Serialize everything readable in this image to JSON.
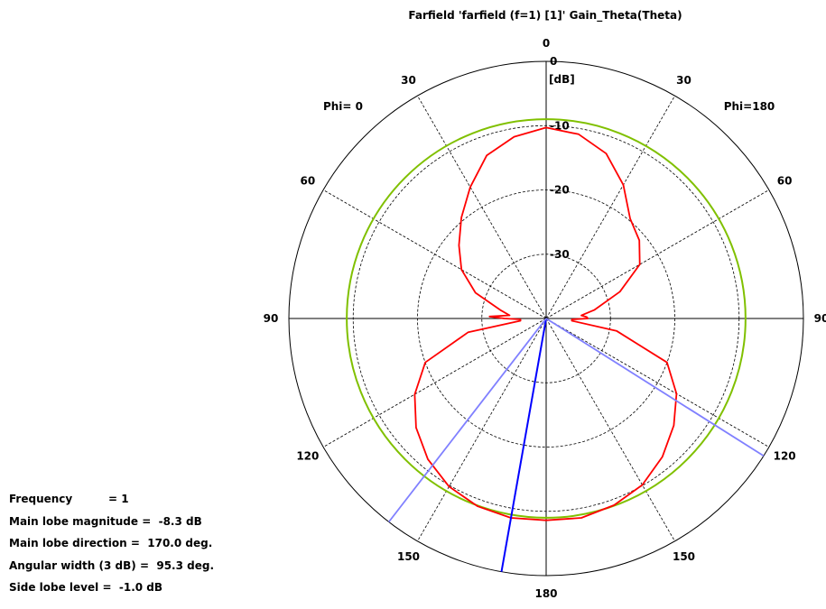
{
  "chart_data": {
    "type": "polar",
    "title": "Farfield 'farfield (f=1) [1]' Gain_Theta(Theta)",
    "unit_label": "[dB]",
    "phi_left_label": "Phi= 0",
    "phi_right_label": "Phi=180",
    "radial_ticks": [
      0,
      -10,
      -20,
      -30
    ],
    "radial_tick_labels": [
      "0",
      "-10",
      "-20",
      "-30"
    ],
    "radial_range_db": [
      -40,
      0
    ],
    "angle_tick_labels_right": [
      "0",
      "30",
      "60",
      "90",
      "120",
      "150",
      "180"
    ],
    "angle_tick_labels_left": [
      "30",
      "60",
      "90",
      "120",
      "150"
    ],
    "grid": true,
    "series": [
      {
        "color": "#ff0000",
        "theta_deg": [
          0,
          10,
          20,
          30,
          40,
          50,
          60,
          70,
          80,
          85,
          88,
          90,
          92,
          95,
          100,
          110,
          120,
          130,
          140,
          150,
          160,
          170,
          180
        ],
        "phi0_db": [
          -10.3,
          -11.3,
          -13.0,
          -16.4,
          -19.5,
          -22.3,
          -24.8,
          -28.3,
          -32.9,
          -34.3,
          -31.2,
          -33.5,
          -36.0,
          -36.0,
          -27.7,
          -20.0,
          -16.4,
          -13.6,
          -11.4,
          -9.8,
          -8.9,
          -8.5,
          -8.6
        ],
        "phi180_db": [
          -10.3,
          -10.9,
          -12.7,
          -16.0,
          -19.7,
          -21.1,
          -23.2,
          -27.8,
          -32.4,
          -34.5,
          -33.7,
          -33.5,
          -36.0,
          -36.0,
          -28.9,
          -20.0,
          -16.6,
          -14.1,
          -11.9,
          -10.1,
          -9.1,
          -8.5,
          -8.6
        ]
      },
      {
        "color": "#80c000",
        "constant_db": -9.0
      }
    ],
    "main_lobe_direction_deg": 170.0,
    "beamwidth_edges_deg": [
      122.3,
      217.7
    ],
    "markers": {
      "main_lobe_color": "#0000ff",
      "beamwidth_color": "#8080ff"
    }
  },
  "info": {
    "frequency_label": "Frequency",
    "frequency_value": "= 1",
    "main_lobe_magnitude_label": "Main lobe magnitude",
    "main_lobe_magnitude_value": "=  -8.3 dB",
    "main_lobe_direction_label": "Main lobe direction",
    "main_lobe_direction_value": "=  170.0 deg.",
    "angular_width_label": "Angular width (3 dB)",
    "angular_width_value": "=  95.3 deg.",
    "side_lobe_label": "Side lobe level",
    "side_lobe_value": "=  -1.0 dB"
  }
}
